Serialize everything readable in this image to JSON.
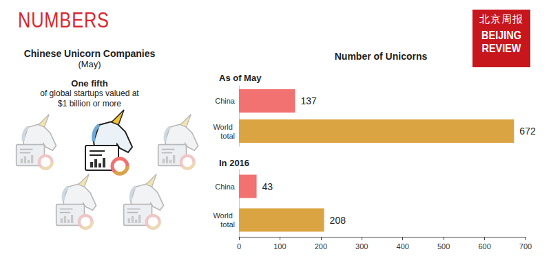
{
  "header": {
    "section": "NUMBERS",
    "logo": {
      "chinese": "北京周报",
      "english": [
        "BEIJING",
        "REVIEW"
      ]
    }
  },
  "infographic": {
    "title": "Chinese Unicorn Companies",
    "subtitle": "(May)",
    "highlight": "One fifth",
    "text": [
      "of global startups valued at",
      "$1 billion or more"
    ]
  },
  "chart_title": "Number of Unicorns",
  "chart_data": [
    {
      "type": "bar",
      "title": "As of May",
      "orientation": "horizontal",
      "categories": [
        "China",
        "World total"
      ],
      "values": [
        137,
        672
      ],
      "colors": [
        "#f27171",
        "#d9a441"
      ],
      "xlim": [
        0,
        700
      ],
      "xticks": [
        0,
        100,
        200,
        300,
        400,
        500,
        600,
        700
      ],
      "data_labels": true,
      "tick_labels": "y",
      "grid": false
    },
    {
      "type": "bar",
      "title": "In 2016",
      "orientation": "horizontal",
      "categories": [
        "China",
        "World total"
      ],
      "values": [
        43,
        208
      ],
      "colors": [
        "#f27171",
        "#d9a441"
      ],
      "xlim": [
        0,
        700
      ],
      "xticks": [
        0,
        100,
        200,
        300,
        400,
        500,
        600,
        700
      ],
      "data_labels": true,
      "grid": false
    }
  ]
}
